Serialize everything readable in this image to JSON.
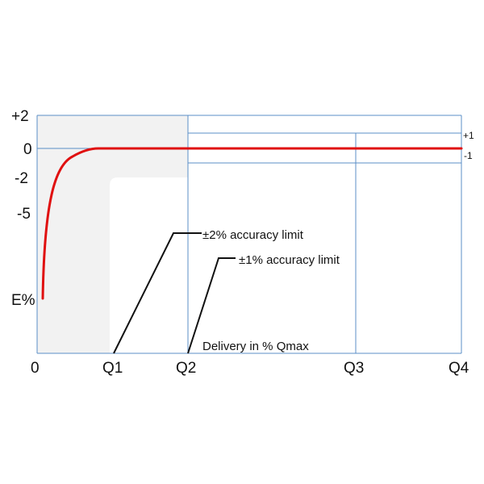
{
  "diagram": {
    "y_labels": [
      "+2",
      "0",
      "-2",
      "-5",
      "E%"
    ],
    "x_labels": [
      "0",
      "Q1",
      "Q2",
      "Q3",
      "Q4"
    ],
    "band_labels": {
      "upper": "+1",
      "lower": "-1"
    },
    "annotations": {
      "limit_2pct": "±2% accuracy limit",
      "limit_1pct": "±1% accuracy limit",
      "delivery": "Delivery in % Qmax"
    },
    "colors": {
      "curve": "#e01010",
      "grid": "#5b8fc7",
      "shaded_zone": "#f2f2f2",
      "leader": "#111111"
    }
  }
}
